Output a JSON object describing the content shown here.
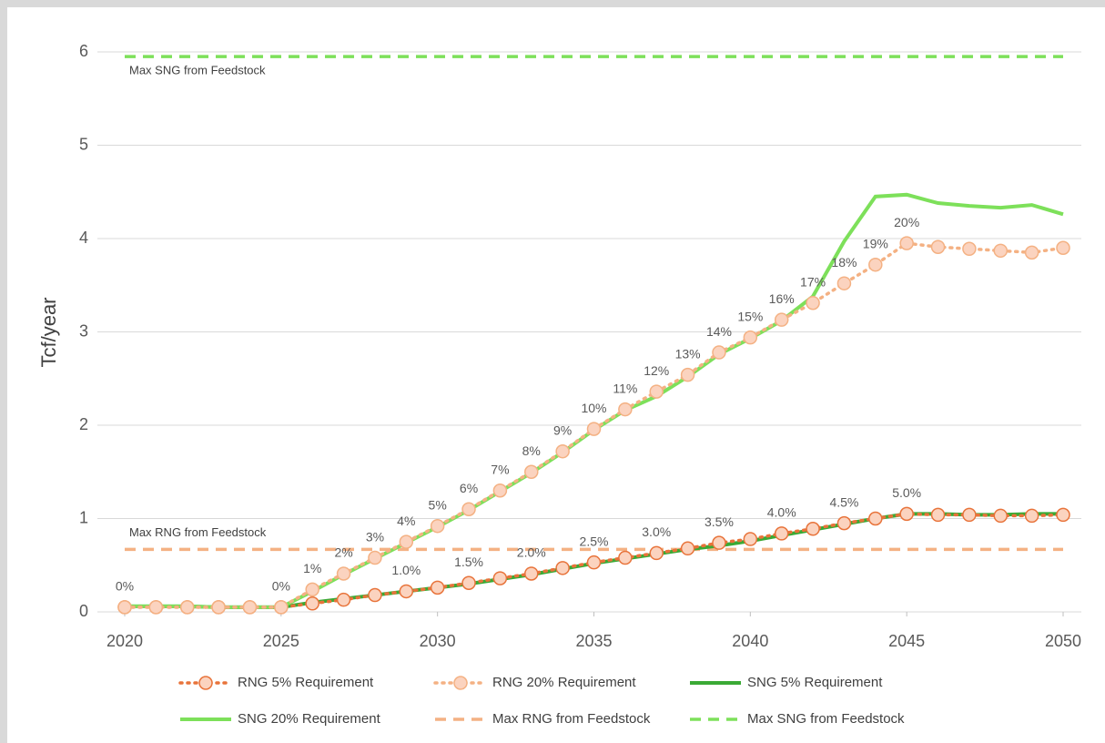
{
  "chart_data": {
    "type": "line",
    "y_label": "Tcf/year",
    "x": [
      2020,
      2021,
      2022,
      2023,
      2024,
      2025,
      2026,
      2027,
      2028,
      2029,
      2030,
      2031,
      2032,
      2033,
      2034,
      2035,
      2036,
      2037,
      2038,
      2039,
      2040,
      2041,
      2042,
      2043,
      2044,
      2045,
      2046,
      2047,
      2048,
      2049,
      2050
    ],
    "xlim": [
      2020,
      2050
    ],
    "xticks": [
      2020,
      2025,
      2030,
      2035,
      2040,
      2045,
      2050
    ],
    "ylim": [
      0,
      6
    ],
    "yticks": [
      0,
      1,
      2,
      3,
      4,
      5,
      6
    ],
    "grid": true,
    "legend": "bottom",
    "annotations": [
      "Max SNG from Feedstock",
      "Max RNG from Feedstock"
    ],
    "series": [
      {
        "name": "RNG 5% Requirement",
        "color": "#e8733a",
        "marker_fill": "#fbd3bf",
        "style": "dotted",
        "marker": "circle",
        "values": [
          0.05,
          0.05,
          0.05,
          0.05,
          0.05,
          0.05,
          0.09,
          0.13,
          0.18,
          0.22,
          0.26,
          0.31,
          0.36,
          0.41,
          0.47,
          0.53,
          0.58,
          0.63,
          0.68,
          0.74,
          0.78,
          0.84,
          0.89,
          0.95,
          1.0,
          1.05,
          1.04,
          1.04,
          1.03,
          1.03,
          1.04
        ],
        "data_labels": [
          {
            "text": "0%",
            "x": 2025
          },
          {
            "text": "1.0%",
            "x": 2029
          },
          {
            "text": "1.5%",
            "x": 2031
          },
          {
            "text": "2.0%",
            "x": 2033
          },
          {
            "text": "2.5%",
            "x": 2035
          },
          {
            "text": "3.0%",
            "x": 2037
          },
          {
            "text": "3.5%",
            "x": 2039
          },
          {
            "text": "4.0%",
            "x": 2041
          },
          {
            "text": "4.5%",
            "x": 2043
          },
          {
            "text": "5.0%",
            "x": 2045
          }
        ]
      },
      {
        "name": "RNG 20% Requirement",
        "color": "#f4b183",
        "marker_fill": "#fbd3bf",
        "style": "dotted",
        "marker": "circle",
        "values": [
          0.05,
          0.05,
          0.05,
          0.05,
          0.05,
          0.05,
          0.24,
          0.41,
          0.58,
          0.75,
          0.92,
          1.1,
          1.3,
          1.5,
          1.72,
          1.96,
          2.17,
          2.36,
          2.54,
          2.78,
          2.94,
          3.13,
          3.31,
          3.52,
          3.72,
          3.95,
          3.91,
          3.89,
          3.87,
          3.85,
          3.9
        ],
        "data_labels": [
          {
            "text": "0%",
            "x": 2020
          },
          {
            "text": "1%",
            "x": 2026
          },
          {
            "text": "2%",
            "x": 2027
          },
          {
            "text": "3%",
            "x": 2028
          },
          {
            "text": "4%",
            "x": 2029
          },
          {
            "text": "5%",
            "x": 2030
          },
          {
            "text": "6%",
            "x": 2031
          },
          {
            "text": "7%",
            "x": 2032
          },
          {
            "text": "8%",
            "x": 2033
          },
          {
            "text": "9%",
            "x": 2034
          },
          {
            "text": "10%",
            "x": 2035
          },
          {
            "text": "11%",
            "x": 2036
          },
          {
            "text": "12%",
            "x": 2037
          },
          {
            "text": "13%",
            "x": 2038
          },
          {
            "text": "14%",
            "x": 2039
          },
          {
            "text": "15%",
            "x": 2040
          },
          {
            "text": "16%",
            "x": 2041
          },
          {
            "text": "17%",
            "x": 2042
          },
          {
            "text": "18%",
            "x": 2043
          },
          {
            "text": "19%",
            "x": 2044
          },
          {
            "text": "20%",
            "x": 2045
          }
        ]
      },
      {
        "name": "SNG 5% Requirement",
        "color": "#3aaa35",
        "style": "solid",
        "values": [
          0.06,
          0.06,
          0.06,
          0.05,
          0.05,
          0.05,
          0.1,
          0.14,
          0.18,
          0.22,
          0.26,
          0.3,
          0.35,
          0.4,
          0.46,
          0.52,
          0.57,
          0.62,
          0.67,
          0.71,
          0.76,
          0.82,
          0.88,
          0.94,
          1.0,
          1.05,
          1.05,
          1.04,
          1.04,
          1.05,
          1.05
        ]
      },
      {
        "name": "SNG 20% Requirement",
        "color": "#7de05a",
        "style": "solid",
        "values": [
          0.06,
          0.06,
          0.06,
          0.05,
          0.05,
          0.05,
          0.22,
          0.4,
          0.57,
          0.74,
          0.91,
          1.09,
          1.29,
          1.49,
          1.71,
          1.95,
          2.16,
          2.31,
          2.52,
          2.76,
          2.93,
          3.12,
          3.38,
          3.97,
          4.45,
          4.47,
          4.38,
          4.35,
          4.33,
          4.36,
          4.26
        ]
      },
      {
        "name": "Max RNG from Feedstock",
        "color": "#f4b183",
        "style": "dashed",
        "values": [
          0.67,
          0.67,
          0.67,
          0.67,
          0.67,
          0.67,
          0.67,
          0.67,
          0.67,
          0.67,
          0.67,
          0.67,
          0.67,
          0.67,
          0.67,
          0.67,
          0.67,
          0.67,
          0.67,
          0.67,
          0.67,
          0.67,
          0.67,
          0.67,
          0.67,
          0.67,
          0.67,
          0.67,
          0.67,
          0.67,
          0.67
        ]
      },
      {
        "name": "Max SNG from Feedstock",
        "color": "#7de05a",
        "style": "dashed",
        "values": [
          5.95,
          5.95,
          5.95,
          5.95,
          5.95,
          5.95,
          5.95,
          5.95,
          5.95,
          5.95,
          5.95,
          5.95,
          5.95,
          5.95,
          5.95,
          5.95,
          5.95,
          5.95,
          5.95,
          5.95,
          5.95,
          5.95,
          5.95,
          5.95,
          5.95,
          5.95,
          5.95,
          5.95,
          5.95,
          5.95,
          5.95
        ]
      }
    ]
  }
}
